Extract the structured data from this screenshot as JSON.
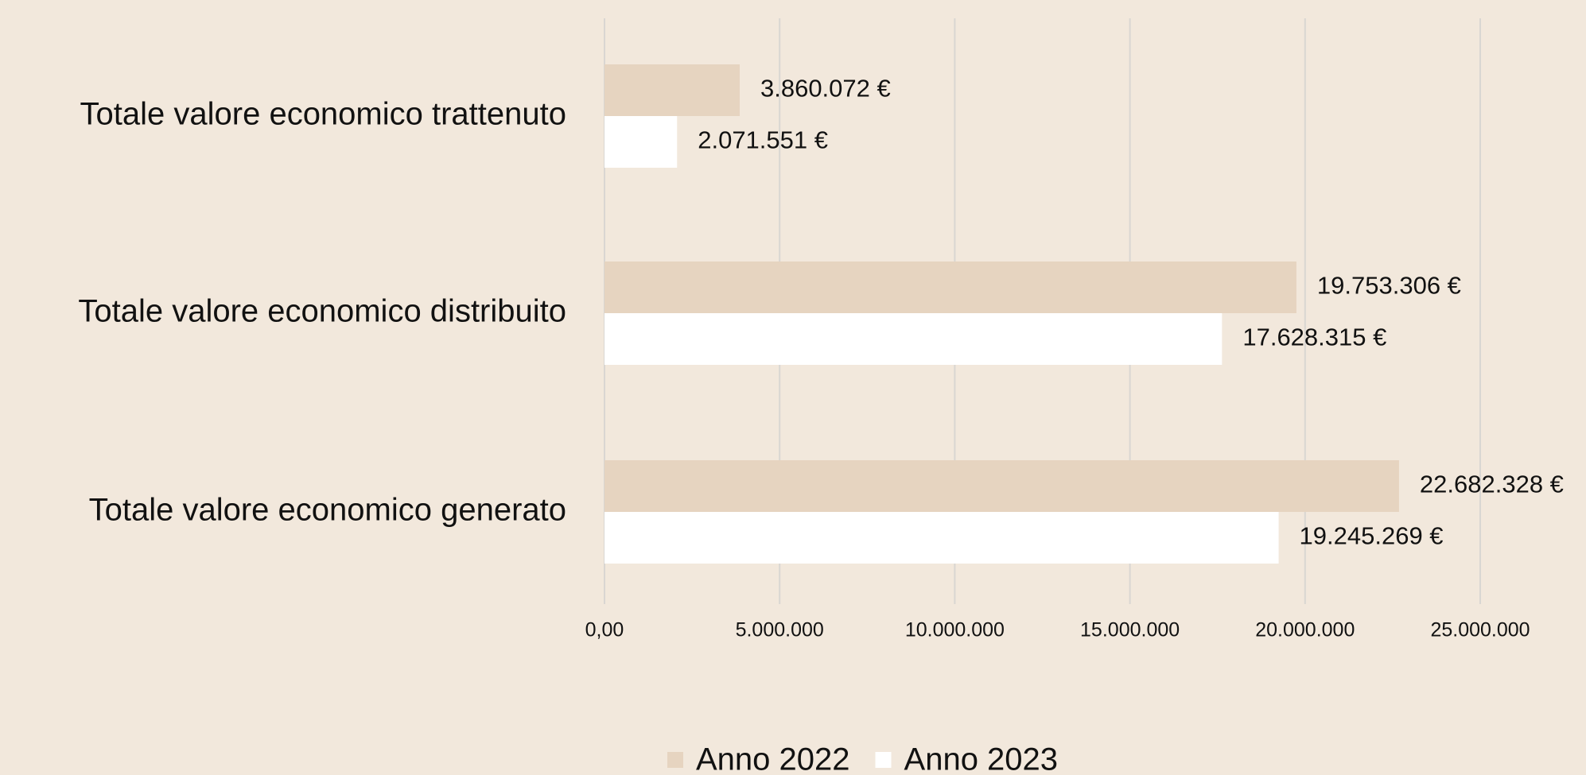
{
  "chart_data": {
    "type": "bar",
    "orientation": "horizontal",
    "categories": [
      "Totale valore economico trattenuto",
      "Totale valore economico distribuito",
      "Totale valore economico generato"
    ],
    "series": [
      {
        "name": "Anno 2022",
        "color": "#e6d4c0",
        "values": [
          3860072,
          19753306,
          22682328
        ],
        "value_labels": [
          "3.860.072 €",
          "19.753.306 €",
          "22.682.328 €"
        ]
      },
      {
        "name": "Anno 2023",
        "color": "#ffffff",
        "values": [
          2071551,
          17628315,
          19245269
        ],
        "value_labels": [
          "2.071.551 €",
          "17.628.315 €",
          "19.245.269 €"
        ]
      }
    ],
    "xlim": [
      0,
      25000000
    ],
    "xticks": [
      {
        "value": 0,
        "label": "0,00"
      },
      {
        "value": 5000000,
        "label": "5.000.000"
      },
      {
        "value": 10000000,
        "label": "10.000.000"
      },
      {
        "value": 15000000,
        "label": "15.000.000"
      },
      {
        "value": 20000000,
        "label": "20.000.000"
      },
      {
        "value": 25000000,
        "label": "25.000.000"
      }
    ],
    "grid": true,
    "legend": "bottom"
  }
}
